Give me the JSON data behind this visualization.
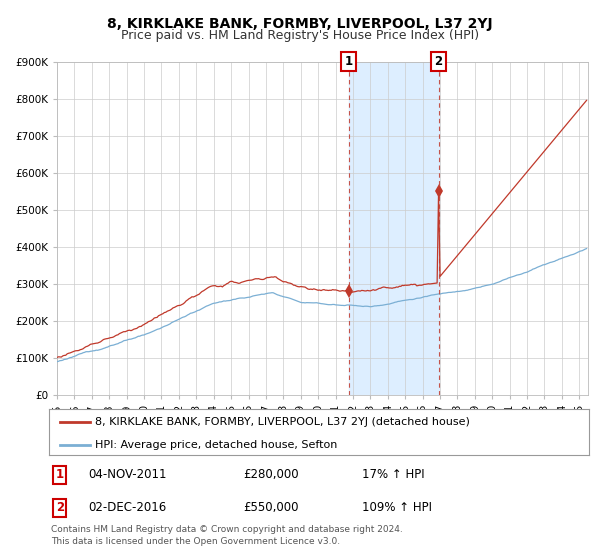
{
  "title": "8, KIRKLAKE BANK, FORMBY, LIVERPOOL, L37 2YJ",
  "subtitle": "Price paid vs. HM Land Registry's House Price Index (HPI)",
  "ylim": [
    0,
    900000
  ],
  "yticks": [
    0,
    100000,
    200000,
    300000,
    400000,
    500000,
    600000,
    700000,
    800000,
    900000
  ],
  "ytick_labels": [
    "£0",
    "£100K",
    "£200K",
    "£300K",
    "£400K",
    "£500K",
    "£600K",
    "£700K",
    "£800K",
    "£900K"
  ],
  "hpi_color": "#7bafd4",
  "price_color": "#c0392b",
  "bg_color": "#ffffff",
  "grid_color": "#cccccc",
  "shade_color": "#ddeeff",
  "transaction1_price": 280000,
  "transaction1_date_str": "04-NOV-2011",
  "transaction1_pct": "17%",
  "transaction2_price": 550000,
  "transaction2_date_str": "02-DEC-2016",
  "transaction2_pct": "109%",
  "legend_line1": "8, KIRKLAKE BANK, FORMBY, LIVERPOOL, L37 2YJ (detached house)",
  "legend_line2": "HPI: Average price, detached house, Sefton",
  "footer": "Contains HM Land Registry data © Crown copyright and database right 2024.\nThis data is licensed under the Open Government Licence v3.0.",
  "title_fontsize": 10,
  "subtitle_fontsize": 9,
  "tick_fontsize": 7.5,
  "legend_fontsize": 8,
  "footer_fontsize": 6.5
}
